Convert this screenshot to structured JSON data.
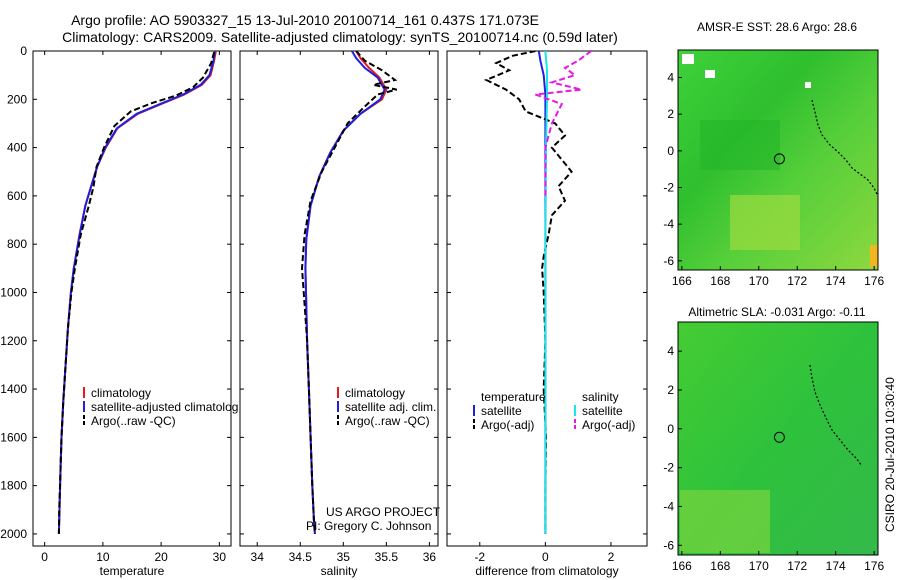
{
  "header": {
    "line1": "Argo profile: AO 5903327_15 13-Jul-2010 20100714_161 0.437S 171.073E",
    "line2": "Climatology: CARS2009. Satellite-adjusted climatology: synTS_20100714.nc (0.59d later)"
  },
  "credit": {
    "project": "US ARGO PROJECT",
    "pi": "PI: Gregory C. Johnson",
    "stamp": "CSIRO 20-Jul-2010 10:30:40"
  },
  "colors": {
    "climatology": "#e41a1c",
    "satellite": "#1f1fe0",
    "argo": "#000000",
    "salinity_satellite": "#19e6e6",
    "salinity_argo": "#e619e6",
    "map_green": "#29c429"
  },
  "chart_data": [
    {
      "type": "line",
      "id": "temperature",
      "xlabel": "temperature",
      "xlim": [
        -2,
        32
      ],
      "xticks": [
        "0",
        "10",
        "20",
        "30"
      ],
      "xtick_values": [
        0,
        10,
        20,
        30
      ],
      "ylim": [
        2050,
        0
      ],
      "yticks": [
        "0",
        "200",
        "400",
        "600",
        "800",
        "1000",
        "1200",
        "1400",
        "1600",
        "1800",
        "2000"
      ],
      "ytick_values": [
        0,
        200,
        400,
        600,
        800,
        1000,
        1200,
        1400,
        1600,
        1800,
        2000
      ],
      "legend": [
        "climatology",
        "satellite-adjusted climatolog",
        "Argo(..raw -QC)"
      ],
      "series": [
        {
          "name": "climatology",
          "color": "#e41a1c",
          "style": "solid",
          "x": [
            29.4,
            29.1,
            28.5,
            27.0,
            24.0,
            20.0,
            16.0,
            12.5,
            10.5,
            9.0,
            8.0,
            7.0,
            6.0,
            5.0,
            4.5,
            4.0,
            3.6,
            3.2,
            2.9,
            2.7,
            2.55,
            2.45
          ],
          "y": [
            0,
            40,
            100,
            140,
            180,
            220,
            260,
            320,
            400,
            480,
            560,
            640,
            760,
            900,
            1000,
            1150,
            1300,
            1450,
            1600,
            1750,
            1900,
            2000
          ]
        },
        {
          "name": "satellite-adjusted climatolog",
          "color": "#1f1fe0",
          "style": "solid",
          "x": [
            29.2,
            29.0,
            28.3,
            26.8,
            23.8,
            19.8,
            15.8,
            12.4,
            10.4,
            9.0,
            8.0,
            7.0,
            6.0,
            5.0,
            4.5,
            4.0,
            3.6,
            3.2,
            2.9,
            2.7,
            2.55,
            2.45
          ],
          "y": [
            0,
            40,
            100,
            140,
            180,
            220,
            260,
            320,
            400,
            480,
            560,
            640,
            760,
            900,
            1000,
            1150,
            1300,
            1450,
            1600,
            1750,
            1900,
            2000
          ]
        },
        {
          "name": "Argo(..raw -QC)",
          "color": "#000000",
          "style": "dashed",
          "x": [
            29.1,
            28.6,
            27.2,
            25.5,
            22.5,
            18.5,
            14.8,
            12.0,
            10.2,
            8.9,
            8.4,
            7.6,
            6.2,
            5.2,
            4.6,
            4.0,
            3.6,
            3.2,
            2.9,
            2.7,
            2.5,
            2.45
          ],
          "y": [
            5,
            50,
            110,
            150,
            185,
            215,
            250,
            310,
            400,
            480,
            560,
            640,
            760,
            900,
            1000,
            1150,
            1300,
            1450,
            1600,
            1750,
            1900,
            2000
          ]
        }
      ]
    },
    {
      "type": "line",
      "id": "salinity",
      "xlabel": "salinity",
      "xlim": [
        33.8,
        36.1
      ],
      "xticks": [
        "34",
        "34.5",
        "35",
        "35.5",
        "36"
      ],
      "xtick_values": [
        34,
        34.5,
        35,
        35.5,
        36
      ],
      "ylim": [
        2050,
        0
      ],
      "yticks": [
        "0",
        "200",
        "400",
        "600",
        "800",
        "1000",
        "1200",
        "1400",
        "1600",
        "1800",
        "2000"
      ],
      "ytick_values": [
        0,
        200,
        400,
        600,
        800,
        1000,
        1200,
        1400,
        1600,
        1800,
        2000
      ],
      "legend": [
        "climatology",
        "satellite adj. clim.",
        "Argo(..raw -QC)"
      ],
      "series": [
        {
          "name": "climatology",
          "color": "#e41a1c",
          "style": "solid",
          "x": [
            35.15,
            35.2,
            35.3,
            35.42,
            35.5,
            35.45,
            35.2,
            35.0,
            34.85,
            34.72,
            34.62,
            34.57,
            34.56,
            34.57,
            34.58,
            34.6,
            34.62,
            34.64,
            34.66,
            34.67
          ],
          "y": [
            0,
            30,
            70,
            110,
            160,
            200,
            260,
            330,
            420,
            520,
            640,
            780,
            900,
            1050,
            1200,
            1400,
            1600,
            1800,
            1950,
            2000
          ]
        },
        {
          "name": "satellite adj. clim.",
          "color": "#1f1fe0",
          "style": "solid",
          "x": [
            35.1,
            35.15,
            35.25,
            35.4,
            35.48,
            35.43,
            35.2,
            35.0,
            34.85,
            34.72,
            34.62,
            34.57,
            34.56,
            34.57,
            34.58,
            34.6,
            34.62,
            34.64,
            34.66,
            34.67
          ],
          "y": [
            0,
            30,
            70,
            110,
            160,
            200,
            260,
            330,
            420,
            520,
            640,
            780,
            900,
            1050,
            1200,
            1400,
            1600,
            1800,
            1950,
            2000
          ]
        },
        {
          "name": "Argo(..raw -QC)",
          "color": "#000000",
          "style": "dashed",
          "x": [
            35.15,
            35.25,
            35.45,
            35.6,
            35.35,
            35.62,
            35.4,
            35.25,
            35.05,
            34.9,
            34.75,
            34.62,
            34.55,
            34.52,
            34.55,
            34.58,
            34.6,
            34.62,
            34.64,
            34.66,
            34.67
          ],
          "y": [
            0,
            40,
            80,
            120,
            140,
            160,
            180,
            230,
            300,
            400,
            500,
            620,
            760,
            900,
            1050,
            1200,
            1400,
            1600,
            1800,
            1950,
            2000
          ]
        }
      ]
    },
    {
      "type": "line",
      "id": "difference",
      "xlabel": "difference from climatology",
      "xlim": [
        -3.0,
        3.1
      ],
      "xticks": [
        "-2",
        "0",
        "2"
      ],
      "xtick_values": [
        -2,
        0,
        2
      ],
      "ylim": [
        2050,
        0
      ],
      "yticks": [
        "0",
        "200",
        "400",
        "600",
        "800",
        "1000",
        "1200",
        "1400",
        "1600",
        "1800",
        "2000"
      ],
      "ytick_values": [
        0,
        200,
        400,
        600,
        800,
        1000,
        1200,
        1400,
        1600,
        1800,
        2000
      ],
      "legend_headers": [
        "temperature",
        "salinity"
      ],
      "legend": [
        "satellite",
        "Argo(-adj)",
        "satellite",
        "Argo(-adj)"
      ],
      "series": [
        {
          "name": "temperature satellite",
          "color": "#1f1fe0",
          "style": "solid",
          "x": [
            -0.2,
            -0.15,
            -0.05,
            0.0,
            0.0,
            0.0,
            0.0,
            0.0,
            0.0
          ],
          "y": [
            0,
            40,
            100,
            180,
            300,
            600,
            1000,
            1500,
            2000
          ]
        },
        {
          "name": "temperature Argo(-adj)",
          "color": "#000000",
          "style": "dashed",
          "x": [
            -0.3,
            -1.0,
            -1.5,
            -1.1,
            -1.8,
            -1.2,
            -0.8,
            -0.6,
            0.3,
            0.6,
            0.2,
            0.5,
            0.8,
            0.4,
            0.6,
            0.2,
            0.1,
            -0.05,
            -0.1,
            -0.05,
            0.0,
            -0.05,
            0.02,
            0.0,
            0.0
          ],
          "y": [
            0,
            20,
            50,
            80,
            120,
            160,
            200,
            250,
            300,
            350,
            400,
            450,
            500,
            560,
            620,
            680,
            760,
            850,
            900,
            1000,
            1200,
            1400,
            1600,
            1800,
            2000
          ]
        },
        {
          "name": "salinity satellite",
          "color": "#19e6e6",
          "style": "solid",
          "x": [
            0.0,
            0.05,
            0.05,
            0.02,
            0.0,
            0.0,
            0.0
          ],
          "y": [
            0,
            80,
            200,
            400,
            800,
            1400,
            2000
          ]
        },
        {
          "name": "salinity Argo(-adj)",
          "color": "#e619e6",
          "style": "dashed",
          "x": [
            1.4,
            1.0,
            0.6,
            0.9,
            0.2,
            1.1,
            -0.3,
            0.5,
            0.2,
            0.0,
            0.0
          ],
          "y": [
            0,
            40,
            70,
            100,
            130,
            160,
            180,
            220,
            300,
            400,
            600
          ]
        }
      ]
    },
    {
      "type": "heatmap",
      "id": "sst_map",
      "title": "AMSR-E SST: 28.6 Argo: 28.6",
      "xlim": [
        165.8,
        176.2
      ],
      "ylim": [
        -6.5,
        5.5
      ],
      "xticks": [
        "166",
        "168",
        "170",
        "172",
        "174",
        "176"
      ],
      "xtick_values": [
        166,
        168,
        170,
        172,
        174,
        176
      ],
      "yticks": [
        "4",
        "2",
        "0",
        "-2",
        "-4",
        "-6"
      ],
      "ytick_values": [
        4,
        2,
        0,
        -2,
        -4,
        -6
      ],
      "argo_position": {
        "lon": 171.073,
        "lat": -0.437
      }
    },
    {
      "type": "heatmap",
      "id": "sla_map",
      "title": "Altimetric SLA: -0.031 Argo: -0.11",
      "xlim": [
        165.8,
        176.2
      ],
      "ylim": [
        -6.5,
        5.5
      ],
      "xticks": [
        "166",
        "168",
        "170",
        "172",
        "174",
        "176"
      ],
      "xtick_values": [
        166,
        168,
        170,
        172,
        174,
        176
      ],
      "yticks": [
        "4",
        "2",
        "0",
        "-2",
        "-4",
        "-6"
      ],
      "ytick_values": [
        4,
        2,
        0,
        -2,
        -4,
        -6
      ],
      "argo_position": {
        "lon": 171.073,
        "lat": -0.437
      }
    }
  ]
}
